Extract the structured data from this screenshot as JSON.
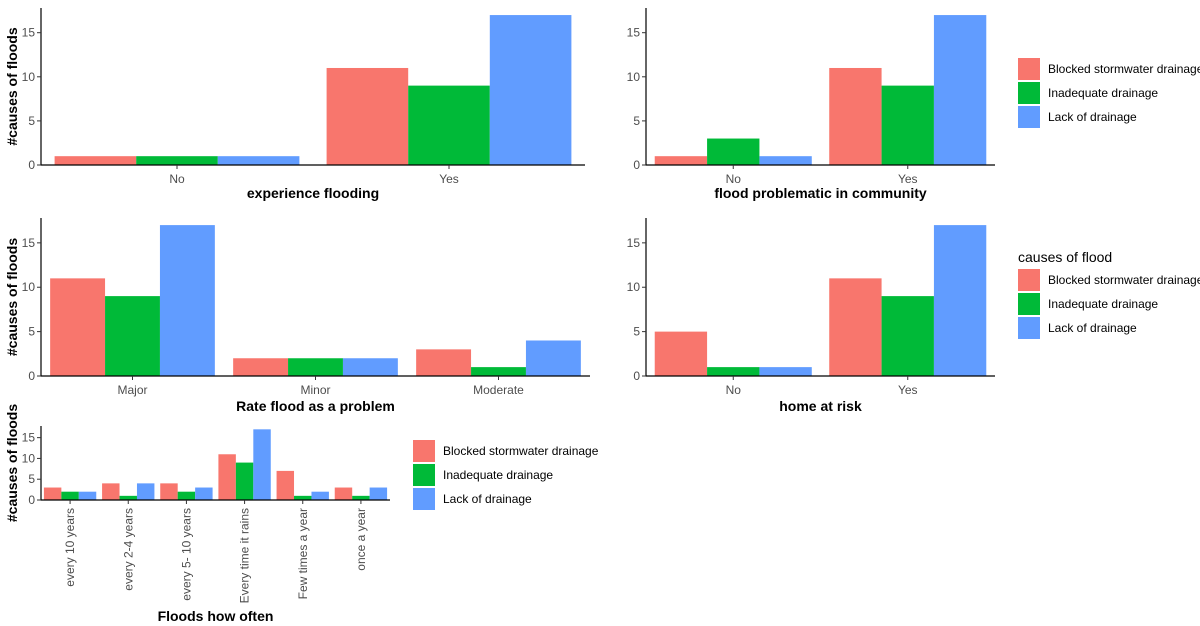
{
  "colors": {
    "Blocked stormwater drainage": "#F8766D",
    "Inadequate drainage": "#00BA38",
    "Lack of drainage": "#619CFF"
  },
  "legends": [
    {
      "title": "",
      "items": [
        "Blocked stormwater drainage",
        "Inadequate drainage",
        "Lack of drainage"
      ]
    },
    {
      "title": "causes of flood",
      "items": [
        "Blocked stormwater drainage",
        "Inadequate drainage",
        "Lack of drainage"
      ]
    },
    {
      "title": "",
      "items": [
        "Blocked stormwater drainage",
        "Inadequate drainage",
        "Lack of drainage"
      ]
    }
  ],
  "chart_data": [
    {
      "type": "bar",
      "xlabel": "experience flooding",
      "ylabel": "#causes of floods",
      "ylim": [
        0,
        17.8
      ],
      "yticks": [
        0,
        5,
        10,
        15
      ],
      "categories": [
        "No",
        "Yes"
      ],
      "series": [
        {
          "name": "Blocked stormwater drainage",
          "values": [
            1,
            11
          ]
        },
        {
          "name": "Inadequate drainage",
          "values": [
            1,
            9
          ]
        },
        {
          "name": "Lack of drainage",
          "values": [
            1,
            17
          ]
        }
      ]
    },
    {
      "type": "bar",
      "xlabel": "flood problematic in community",
      "ylabel": "",
      "ylim": [
        0,
        17.8
      ],
      "yticks": [
        0,
        5,
        10,
        15
      ],
      "categories": [
        "No",
        "Yes"
      ],
      "series": [
        {
          "name": "Blocked stormwater drainage",
          "values": [
            1,
            11
          ]
        },
        {
          "name": "Inadequate drainage",
          "values": [
            3,
            9
          ]
        },
        {
          "name": "Lack of drainage",
          "values": [
            1,
            17
          ]
        }
      ]
    },
    {
      "type": "bar",
      "xlabel": "Rate flood as a problem",
      "ylabel": "#causes of floods",
      "ylim": [
        0,
        17.8
      ],
      "yticks": [
        0,
        5,
        10,
        15
      ],
      "categories": [
        "Major",
        "Minor",
        "Moderate"
      ],
      "series": [
        {
          "name": "Blocked stormwater drainage",
          "values": [
            11,
            2,
            3
          ]
        },
        {
          "name": "Inadequate drainage",
          "values": [
            9,
            2,
            1
          ]
        },
        {
          "name": "Lack of drainage",
          "values": [
            17,
            2,
            4
          ]
        }
      ]
    },
    {
      "type": "bar",
      "xlabel": "home at risk",
      "ylabel": "",
      "ylim": [
        0,
        17.8
      ],
      "yticks": [
        0,
        5,
        10,
        15
      ],
      "categories": [
        "No",
        "Yes"
      ],
      "series": [
        {
          "name": "Blocked stormwater drainage",
          "values": [
            5,
            11
          ]
        },
        {
          "name": "Inadequate drainage",
          "values": [
            1,
            9
          ]
        },
        {
          "name": "Lack of drainage",
          "values": [
            1,
            17
          ]
        }
      ]
    },
    {
      "type": "bar",
      "xlabel": "Floods how often",
      "ylabel": "#causes of floods",
      "ylim": [
        0,
        17.8
      ],
      "yticks": [
        0,
        5,
        10,
        15
      ],
      "categories": [
        "every 10 years",
        "every 2-4 years",
        "every 5- 10 years",
        "Every time it rains",
        "Few times a year",
        "once a year"
      ],
      "series": [
        {
          "name": "Blocked stormwater drainage",
          "values": [
            3,
            4,
            4,
            11,
            7,
            3
          ]
        },
        {
          "name": "Inadequate drainage",
          "values": [
            2,
            1,
            2,
            9,
            1,
            1
          ]
        },
        {
          "name": "Lack of drainage",
          "values": [
            2,
            4,
            3,
            17,
            2,
            3
          ]
        }
      ]
    }
  ]
}
